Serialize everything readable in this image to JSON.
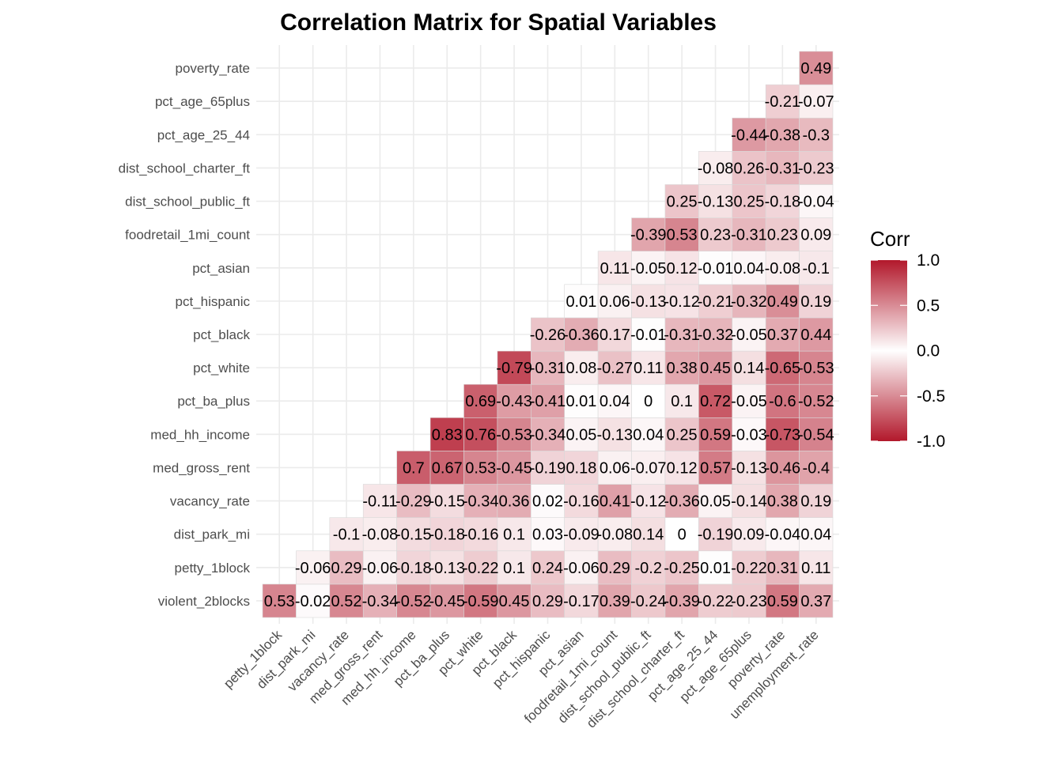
{
  "chart_data": {
    "type": "heatmap",
    "title": "Correlation Matrix for Spatial Variables",
    "xlabel": "",
    "ylabel": "",
    "x_categories": [
      "petty_1block",
      "dist_park_mi",
      "vacancy_rate",
      "med_gross_rent",
      "med_hh_income",
      "pct_ba_plus",
      "pct_white",
      "pct_black",
      "pct_hispanic",
      "pct_asian",
      "foodretail_1mi_count",
      "dist_school_public_ft",
      "dist_school_charter_ft",
      "pct_age_25_44",
      "pct_age_65plus",
      "poverty_rate",
      "unemployment_rate"
    ],
    "y_categories": [
      "violent_2blocks",
      "petty_1block",
      "dist_park_mi",
      "vacancy_rate",
      "med_gross_rent",
      "med_hh_income",
      "pct_ba_plus",
      "pct_white",
      "pct_black",
      "pct_hispanic",
      "pct_asian",
      "foodretail_1mi_count",
      "dist_school_public_ft",
      "dist_school_charter_ft",
      "pct_age_25_44",
      "pct_age_65plus",
      "poverty_rate"
    ],
    "rows": [
      {
        "y": "violent_2blocks",
        "values": [
          "0.53",
          "-0.02",
          "0.52",
          "-0.34",
          "-0.52",
          "-0.45",
          "-0.59",
          "0.45",
          "0.29",
          "-0.17",
          "0.39",
          "-0.24",
          "-0.39",
          "-0.22",
          "-0.23",
          "0.59",
          "0.37"
        ]
      },
      {
        "y": "petty_1block",
        "values": [
          "-0.06",
          "0.29",
          "-0.06",
          "-0.18",
          "-0.13",
          "-0.22",
          "0.1",
          "0.24",
          "-0.06",
          "0.29",
          "-0.2",
          "-0.25",
          "0.01",
          "-0.22",
          "0.31",
          "0.11"
        ]
      },
      {
        "y": "dist_park_mi",
        "values": [
          "-0.1",
          "-0.08",
          "-0.15",
          "-0.18",
          "-0.16",
          "0.1",
          "0.03",
          "-0.09",
          "-0.08",
          "0.14",
          "0",
          "-0.19",
          "0.09",
          "-0.04",
          "0.04"
        ]
      },
      {
        "y": "vacancy_rate",
        "values": [
          "-0.11",
          "-0.29",
          "-0.15",
          "-0.34",
          "0.36",
          "0.02",
          "-0.16",
          "0.41",
          "-0.12",
          "-0.36",
          "0.05",
          "-0.14",
          "0.38",
          "0.19"
        ]
      },
      {
        "y": "med_gross_rent",
        "values": [
          "0.7",
          "0.67",
          "0.53",
          "-0.45",
          "-0.19",
          "0.18",
          "0.06",
          "-0.07",
          "0.12",
          "0.57",
          "-0.13",
          "-0.46",
          "-0.4"
        ]
      },
      {
        "y": "med_hh_income",
        "values": [
          "0.83",
          "0.76",
          "-0.53",
          "-0.34",
          "0.05",
          "-0.13",
          "0.04",
          "0.25",
          "0.59",
          "-0.03",
          "-0.73",
          "-0.54"
        ]
      },
      {
        "y": "pct_ba_plus",
        "values": [
          "0.69",
          "-0.43",
          "-0.41",
          "0.01",
          "0.04",
          "0",
          "0.1",
          "0.72",
          "-0.05",
          "-0.6",
          "-0.52"
        ]
      },
      {
        "y": "pct_white",
        "values": [
          "-0.79",
          "-0.31",
          "0.08",
          "-0.27",
          "0.11",
          "0.38",
          "0.45",
          "0.14",
          "-0.65",
          "-0.53"
        ]
      },
      {
        "y": "pct_black",
        "values": [
          "-0.26",
          "-0.36",
          "0.17",
          "-0.01",
          "-0.31",
          "-0.32",
          "-0.05",
          "0.37",
          "0.44"
        ]
      },
      {
        "y": "pct_hispanic",
        "values": [
          "0.01",
          "0.06",
          "-0.13",
          "-0.12",
          "-0.21",
          "-0.32",
          "0.49",
          "0.19"
        ]
      },
      {
        "y": "pct_asian",
        "values": [
          "0.11",
          "-0.05",
          "0.12",
          "-0.01",
          "0.04",
          "-0.08",
          "-0.1"
        ]
      },
      {
        "y": "foodretail_1mi_count",
        "values": [
          "-0.39",
          "0.53",
          "0.23",
          "-0.31",
          "0.23",
          "0.09"
        ]
      },
      {
        "y": "dist_school_public_ft",
        "values": [
          "0.25",
          "-0.13",
          "0.25",
          "-0.18",
          "-0.04"
        ]
      },
      {
        "y": "dist_school_charter_ft",
        "values": [
          "-0.08",
          "0.26",
          "-0.31",
          "-0.23"
        ]
      },
      {
        "y": "pct_age_25_44",
        "values": [
          "-0.44",
          "-0.38",
          "-0.3"
        ]
      },
      {
        "y": "pct_age_65plus",
        "values": [
          "-0.21",
          "-0.07"
        ]
      },
      {
        "y": "poverty_rate",
        "values": [
          "0.49"
        ]
      }
    ],
    "color_scale": {
      "low": "#b2182b",
      "mid": "#ffffff",
      "high": "#b2182b",
      "limits": [
        -1,
        1
      ]
    },
    "legend": {
      "title": "Corr",
      "position": "right",
      "ticks": [
        "1.0",
        "0.5",
        "0.0",
        "-0.5",
        "-1.0"
      ]
    },
    "grid": true
  }
}
